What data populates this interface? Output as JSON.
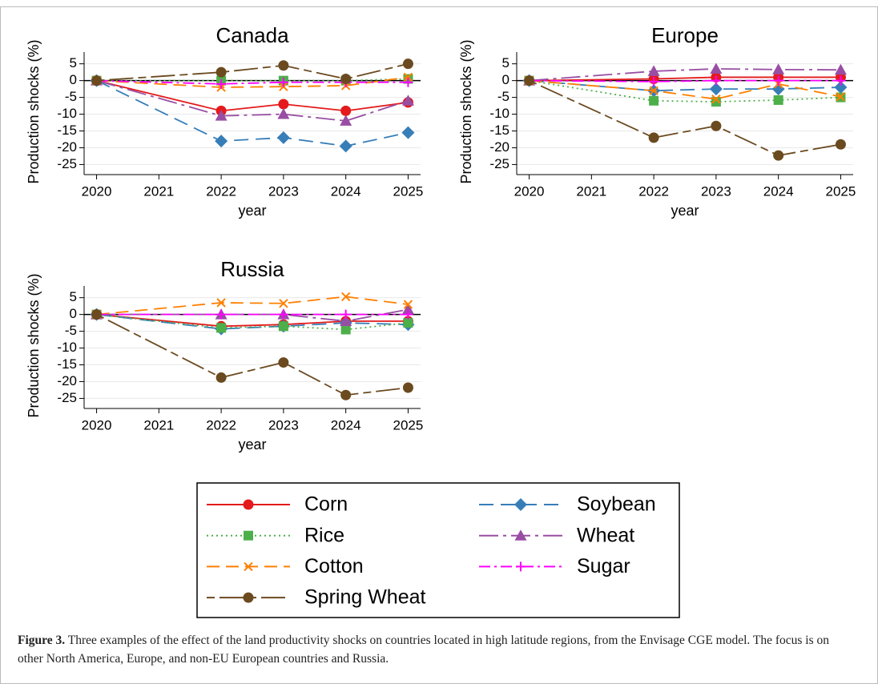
{
  "chart_data": [
    {
      "type": "line",
      "title": "Canada",
      "x_label": "year",
      "y_label": "Production shocks (%)",
      "x": [
        2020,
        2022,
        2023,
        2024,
        2025
      ],
      "xlim": [
        2019.8,
        2025.2
      ],
      "xticks": [
        2020,
        2021,
        2022,
        2023,
        2024,
        2025
      ],
      "ylim": [
        -28,
        8.5
      ],
      "yticks": [
        5,
        0,
        -5,
        -10,
        -15,
        -20,
        -25
      ],
      "grid": true,
      "hline": 0,
      "series": [
        {
          "name": "Corn",
          "color": "#e41a1c",
          "line_style": "solid",
          "marker": "circle",
          "values": [
            0,
            -9,
            -7,
            -9,
            -6.5
          ]
        },
        {
          "name": "Soybean",
          "color": "#377eb8",
          "line_style": "longdash",
          "marker": "diamond",
          "values": [
            0,
            -18,
            -17,
            -19.5,
            -15.5
          ]
        },
        {
          "name": "Rice",
          "color": "#4daf4a",
          "line_style": "dot",
          "marker": "square",
          "values": [
            0,
            0,
            0,
            0,
            0.5
          ]
        },
        {
          "name": "Wheat",
          "color": "#984ea3",
          "line_style": "longdashdot",
          "marker": "triangle",
          "values": [
            0,
            -10.5,
            -10,
            -12,
            -6
          ]
        },
        {
          "name": "Cotton",
          "color": "#ff7f00",
          "line_style": "dash",
          "marker": "x",
          "values": [
            0,
            -2,
            -1.8,
            -1.5,
            1
          ]
        },
        {
          "name": "Sugar",
          "color": "#ff00ff",
          "line_style": "dashdot",
          "marker": "plus",
          "values": [
            0,
            -1,
            -0.5,
            -0.5,
            -0.5
          ]
        },
        {
          "name": "Spring Wheat",
          "color": "#6b4a1f",
          "line_style": "dashlong",
          "marker": "circle",
          "values": [
            0,
            2.5,
            4.5,
            0.5,
            5
          ]
        }
      ]
    },
    {
      "type": "line",
      "title": "Europe",
      "x_label": "year",
      "y_label": "Production shocks (%)",
      "x": [
        2020,
        2022,
        2023,
        2024,
        2025
      ],
      "xlim": [
        2019.8,
        2025.2
      ],
      "xticks": [
        2020,
        2021,
        2022,
        2023,
        2024,
        2025
      ],
      "ylim": [
        -28,
        8.5
      ],
      "yticks": [
        5,
        0,
        -5,
        -10,
        -15,
        -20,
        -25
      ],
      "grid": true,
      "hline": 0,
      "series": [
        {
          "name": "Corn",
          "color": "#e41a1c",
          "line_style": "solid",
          "marker": "circle",
          "values": [
            0,
            0.5,
            1,
            1,
            1
          ]
        },
        {
          "name": "Soybean",
          "color": "#377eb8",
          "line_style": "longdash",
          "marker": "diamond",
          "values": [
            0,
            -3,
            -2.5,
            -2.5,
            -2
          ]
        },
        {
          "name": "Rice",
          "color": "#4daf4a",
          "line_style": "dot",
          "marker": "square",
          "values": [
            0,
            -6,
            -6.3,
            -5.8,
            -5
          ]
        },
        {
          "name": "Wheat",
          "color": "#984ea3",
          "line_style": "longdashdot",
          "marker": "triangle",
          "values": [
            0,
            2.8,
            3.5,
            3.3,
            3.2
          ]
        },
        {
          "name": "Cotton",
          "color": "#ff7f00",
          "line_style": "dash",
          "marker": "x",
          "values": [
            0,
            -3,
            -5.5,
            -1,
            -4.8
          ]
        },
        {
          "name": "Sugar",
          "color": "#ff00ff",
          "line_style": "dashdot",
          "marker": "plus",
          "values": [
            0,
            -0.3,
            0,
            0,
            0
          ]
        },
        {
          "name": "Spring Wheat",
          "color": "#6b4a1f",
          "line_style": "dashlong",
          "marker": "circle",
          "values": [
            0,
            -17,
            -13.5,
            -22.3,
            -19
          ]
        }
      ]
    },
    {
      "type": "line",
      "title": "Russia",
      "x_label": "year",
      "y_label": "Production shocks (%)",
      "x": [
        2020,
        2022,
        2023,
        2024,
        2025
      ],
      "xlim": [
        2019.8,
        2025.2
      ],
      "xticks": [
        2020,
        2021,
        2022,
        2023,
        2024,
        2025
      ],
      "ylim": [
        -28,
        8.5
      ],
      "yticks": [
        5,
        0,
        -5,
        -10,
        -15,
        -20,
        -25
      ],
      "grid": true,
      "hline": 0,
      "series": [
        {
          "name": "Corn",
          "color": "#e41a1c",
          "line_style": "solid",
          "marker": "circle",
          "values": [
            0,
            -3.5,
            -3,
            -2,
            -2
          ]
        },
        {
          "name": "Soybean",
          "color": "#377eb8",
          "line_style": "longdash",
          "marker": "diamond",
          "values": [
            0,
            -4.3,
            -3.5,
            -2.5,
            -3
          ]
        },
        {
          "name": "Rice",
          "color": "#4daf4a",
          "line_style": "dot",
          "marker": "square",
          "values": [
            0,
            -4,
            -3.5,
            -4.5,
            -2.5
          ]
        },
        {
          "name": "Wheat",
          "color": "#984ea3",
          "line_style": "longdashdot",
          "marker": "triangle",
          "values": [
            0,
            0,
            0,
            -2,
            1.5
          ]
        },
        {
          "name": "Cotton",
          "color": "#ff7f00",
          "line_style": "dash",
          "marker": "x",
          "values": [
            0,
            3.5,
            3.3,
            5.3,
            3
          ]
        },
        {
          "name": "Sugar",
          "color": "#ff00ff",
          "line_style": "dashdot",
          "marker": "plus",
          "values": [
            0,
            0,
            0,
            0,
            0
          ]
        },
        {
          "name": "Spring Wheat",
          "color": "#6b4a1f",
          "line_style": "dashlong",
          "marker": "circle",
          "values": [
            0,
            -18.8,
            -14.3,
            -24,
            -21.8
          ]
        }
      ]
    }
  ],
  "caption": {
    "label": "Figure 3.",
    "text": "Three examples of the effect of the land productivity shocks on countries located in high latitude regions, from the Envisage CGE model. The focus is on other North America, Europe, and non-EU European countries and Russia."
  }
}
